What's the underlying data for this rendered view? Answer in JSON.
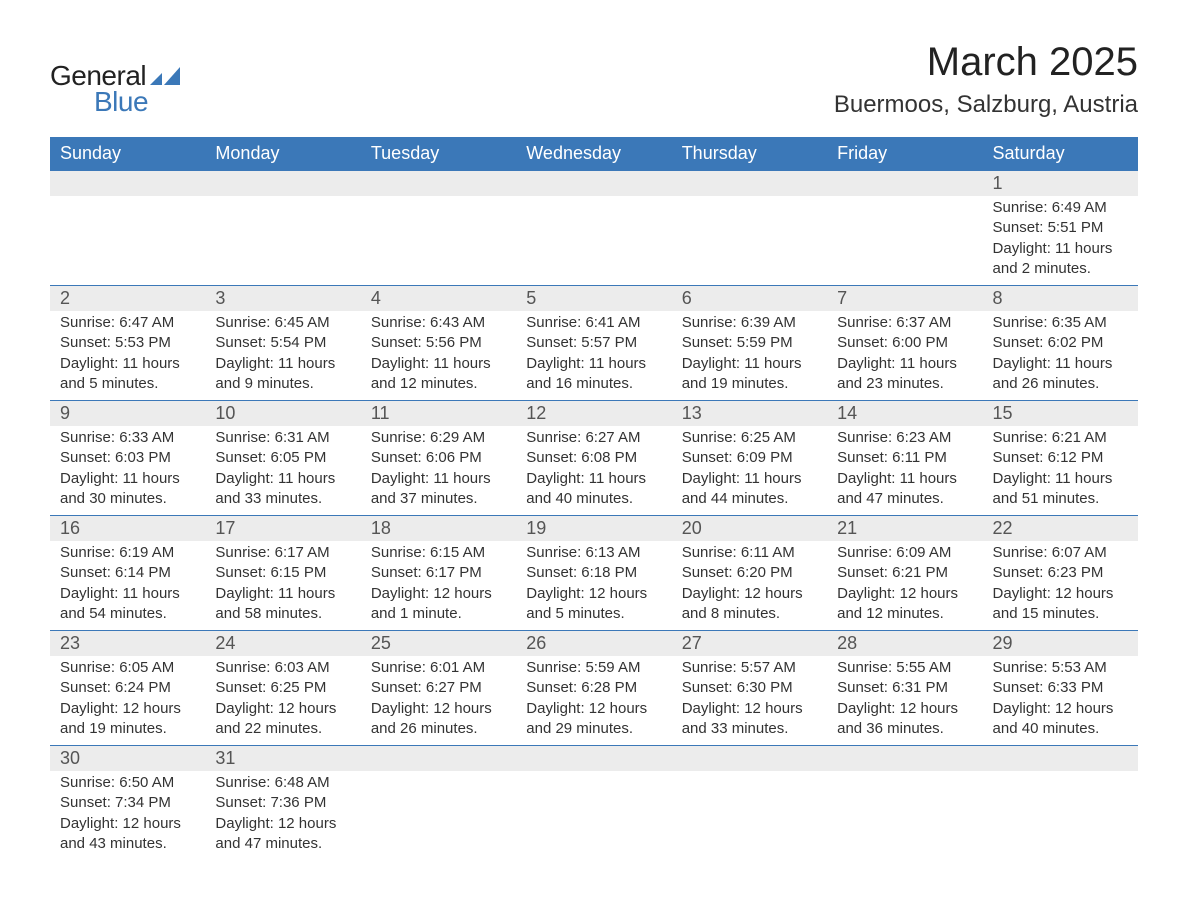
{
  "logo": {
    "text_general": "General",
    "text_blue": "Blue",
    "mark_color": "#3b78b8"
  },
  "title": "March 2025",
  "location": "Buermoos, Salzburg, Austria",
  "colors": {
    "header_bg": "#3b78b8",
    "header_text": "#ffffff",
    "daynum_bg": "#ececec",
    "daynum_text": "#555555",
    "body_text": "#333333",
    "row_divider": "#3b78b8",
    "page_bg": "#ffffff"
  },
  "typography": {
    "title_fontsize": 40,
    "location_fontsize": 24,
    "header_fontsize": 18,
    "daynum_fontsize": 18,
    "data_fontsize": 15,
    "font_family": "Arial"
  },
  "weekdays": [
    "Sunday",
    "Monday",
    "Tuesday",
    "Wednesday",
    "Thursday",
    "Friday",
    "Saturday"
  ],
  "weeks": [
    [
      null,
      null,
      null,
      null,
      null,
      null,
      {
        "day": "1",
        "sunrise": "Sunrise: 6:49 AM",
        "sunset": "Sunset: 5:51 PM",
        "daylight": "Daylight: 11 hours and 2 minutes."
      }
    ],
    [
      {
        "day": "2",
        "sunrise": "Sunrise: 6:47 AM",
        "sunset": "Sunset: 5:53 PM",
        "daylight": "Daylight: 11 hours and 5 minutes."
      },
      {
        "day": "3",
        "sunrise": "Sunrise: 6:45 AM",
        "sunset": "Sunset: 5:54 PM",
        "daylight": "Daylight: 11 hours and 9 minutes."
      },
      {
        "day": "4",
        "sunrise": "Sunrise: 6:43 AM",
        "sunset": "Sunset: 5:56 PM",
        "daylight": "Daylight: 11 hours and 12 minutes."
      },
      {
        "day": "5",
        "sunrise": "Sunrise: 6:41 AM",
        "sunset": "Sunset: 5:57 PM",
        "daylight": "Daylight: 11 hours and 16 minutes."
      },
      {
        "day": "6",
        "sunrise": "Sunrise: 6:39 AM",
        "sunset": "Sunset: 5:59 PM",
        "daylight": "Daylight: 11 hours and 19 minutes."
      },
      {
        "day": "7",
        "sunrise": "Sunrise: 6:37 AM",
        "sunset": "Sunset: 6:00 PM",
        "daylight": "Daylight: 11 hours and 23 minutes."
      },
      {
        "day": "8",
        "sunrise": "Sunrise: 6:35 AM",
        "sunset": "Sunset: 6:02 PM",
        "daylight": "Daylight: 11 hours and 26 minutes."
      }
    ],
    [
      {
        "day": "9",
        "sunrise": "Sunrise: 6:33 AM",
        "sunset": "Sunset: 6:03 PM",
        "daylight": "Daylight: 11 hours and 30 minutes."
      },
      {
        "day": "10",
        "sunrise": "Sunrise: 6:31 AM",
        "sunset": "Sunset: 6:05 PM",
        "daylight": "Daylight: 11 hours and 33 minutes."
      },
      {
        "day": "11",
        "sunrise": "Sunrise: 6:29 AM",
        "sunset": "Sunset: 6:06 PM",
        "daylight": "Daylight: 11 hours and 37 minutes."
      },
      {
        "day": "12",
        "sunrise": "Sunrise: 6:27 AM",
        "sunset": "Sunset: 6:08 PM",
        "daylight": "Daylight: 11 hours and 40 minutes."
      },
      {
        "day": "13",
        "sunrise": "Sunrise: 6:25 AM",
        "sunset": "Sunset: 6:09 PM",
        "daylight": "Daylight: 11 hours and 44 minutes."
      },
      {
        "day": "14",
        "sunrise": "Sunrise: 6:23 AM",
        "sunset": "Sunset: 6:11 PM",
        "daylight": "Daylight: 11 hours and 47 minutes."
      },
      {
        "day": "15",
        "sunrise": "Sunrise: 6:21 AM",
        "sunset": "Sunset: 6:12 PM",
        "daylight": "Daylight: 11 hours and 51 minutes."
      }
    ],
    [
      {
        "day": "16",
        "sunrise": "Sunrise: 6:19 AM",
        "sunset": "Sunset: 6:14 PM",
        "daylight": "Daylight: 11 hours and 54 minutes."
      },
      {
        "day": "17",
        "sunrise": "Sunrise: 6:17 AM",
        "sunset": "Sunset: 6:15 PM",
        "daylight": "Daylight: 11 hours and 58 minutes."
      },
      {
        "day": "18",
        "sunrise": "Sunrise: 6:15 AM",
        "sunset": "Sunset: 6:17 PM",
        "daylight": "Daylight: 12 hours and 1 minute."
      },
      {
        "day": "19",
        "sunrise": "Sunrise: 6:13 AM",
        "sunset": "Sunset: 6:18 PM",
        "daylight": "Daylight: 12 hours and 5 minutes."
      },
      {
        "day": "20",
        "sunrise": "Sunrise: 6:11 AM",
        "sunset": "Sunset: 6:20 PM",
        "daylight": "Daylight: 12 hours and 8 minutes."
      },
      {
        "day": "21",
        "sunrise": "Sunrise: 6:09 AM",
        "sunset": "Sunset: 6:21 PM",
        "daylight": "Daylight: 12 hours and 12 minutes."
      },
      {
        "day": "22",
        "sunrise": "Sunrise: 6:07 AM",
        "sunset": "Sunset: 6:23 PM",
        "daylight": "Daylight: 12 hours and 15 minutes."
      }
    ],
    [
      {
        "day": "23",
        "sunrise": "Sunrise: 6:05 AM",
        "sunset": "Sunset: 6:24 PM",
        "daylight": "Daylight: 12 hours and 19 minutes."
      },
      {
        "day": "24",
        "sunrise": "Sunrise: 6:03 AM",
        "sunset": "Sunset: 6:25 PM",
        "daylight": "Daylight: 12 hours and 22 minutes."
      },
      {
        "day": "25",
        "sunrise": "Sunrise: 6:01 AM",
        "sunset": "Sunset: 6:27 PM",
        "daylight": "Daylight: 12 hours and 26 minutes."
      },
      {
        "day": "26",
        "sunrise": "Sunrise: 5:59 AM",
        "sunset": "Sunset: 6:28 PM",
        "daylight": "Daylight: 12 hours and 29 minutes."
      },
      {
        "day": "27",
        "sunrise": "Sunrise: 5:57 AM",
        "sunset": "Sunset: 6:30 PM",
        "daylight": "Daylight: 12 hours and 33 minutes."
      },
      {
        "day": "28",
        "sunrise": "Sunrise: 5:55 AM",
        "sunset": "Sunset: 6:31 PM",
        "daylight": "Daylight: 12 hours and 36 minutes."
      },
      {
        "day": "29",
        "sunrise": "Sunrise: 5:53 AM",
        "sunset": "Sunset: 6:33 PM",
        "daylight": "Daylight: 12 hours and 40 minutes."
      }
    ],
    [
      {
        "day": "30",
        "sunrise": "Sunrise: 6:50 AM",
        "sunset": "Sunset: 7:34 PM",
        "daylight": "Daylight: 12 hours and 43 minutes."
      },
      {
        "day": "31",
        "sunrise": "Sunrise: 6:48 AM",
        "sunset": "Sunset: 7:36 PM",
        "daylight": "Daylight: 12 hours and 47 minutes."
      },
      null,
      null,
      null,
      null,
      null
    ]
  ]
}
